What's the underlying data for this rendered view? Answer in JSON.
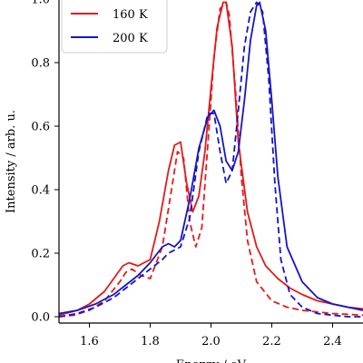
{
  "chart_data": {
    "type": "line",
    "title": "",
    "xlabel": "Energy / eV",
    "ylabel": "Intensity / arb. u.",
    "xlim": [
      1.5,
      2.5
    ],
    "ylim": [
      -0.02,
      1.02
    ],
    "xticks": [
      1.6,
      1.8,
      2.0,
      2.2,
      2.4
    ],
    "xtick_labels": [
      "1.6",
      "1.8",
      "2.0",
      "2.2",
      "2.4"
    ],
    "yticks": [
      0.0,
      0.2,
      0.4,
      0.6,
      0.8,
      1.0
    ],
    "ytick_labels": [
      "0.0",
      "0.2",
      "0.4",
      "0.6",
      "0.8",
      "1.0"
    ],
    "grid": false,
    "legend_position": "top-left",
    "legend": [
      {
        "label": "160 K",
        "color": "#e31a1c"
      },
      {
        "label": "200 K",
        "color": "#1515c8"
      }
    ],
    "series": [
      {
        "name": "160 K",
        "color": "#e31a1c",
        "style": "solid",
        "x": [
          1.5,
          1.56,
          1.6,
          1.65,
          1.68,
          1.71,
          1.73,
          1.76,
          1.8,
          1.83,
          1.86,
          1.88,
          1.9,
          1.92,
          1.94,
          1.96,
          1.98,
          2.0,
          2.02,
          2.04,
          2.05,
          2.07,
          2.09,
          2.12,
          2.15,
          2.18,
          2.22,
          2.26,
          2.3,
          2.35,
          2.4,
          2.45,
          2.5
        ],
        "y": [
          0.005,
          0.02,
          0.04,
          0.08,
          0.12,
          0.16,
          0.17,
          0.16,
          0.18,
          0.3,
          0.46,
          0.54,
          0.55,
          0.42,
          0.33,
          0.38,
          0.52,
          0.72,
          0.91,
          0.99,
          0.99,
          0.85,
          0.55,
          0.33,
          0.22,
          0.16,
          0.12,
          0.09,
          0.07,
          0.05,
          0.04,
          0.03,
          0.025
        ]
      },
      {
        "name": "160 K",
        "color": "#e31a1c",
        "style": "dashed",
        "x": [
          1.5,
          1.55,
          1.6,
          1.65,
          1.7,
          1.72,
          1.74,
          1.77,
          1.8,
          1.84,
          1.87,
          1.89,
          1.91,
          1.93,
          1.95,
          1.97,
          1.99,
          2.01,
          2.03,
          2.05,
          2.06,
          2.08,
          2.1,
          2.12,
          2.15,
          2.2,
          2.25,
          2.3,
          2.4,
          2.5
        ],
        "y": [
          0.0,
          0.005,
          0.02,
          0.05,
          0.11,
          0.14,
          0.15,
          0.13,
          0.12,
          0.22,
          0.4,
          0.52,
          0.5,
          0.3,
          0.22,
          0.28,
          0.55,
          0.82,
          0.97,
          0.99,
          0.95,
          0.72,
          0.44,
          0.24,
          0.11,
          0.05,
          0.03,
          0.02,
          0.01,
          0.005
        ]
      },
      {
        "name": "200 K",
        "color": "#1515c8",
        "style": "solid",
        "x": [
          1.5,
          1.56,
          1.62,
          1.68,
          1.72,
          1.76,
          1.8,
          1.84,
          1.86,
          1.88,
          1.9,
          1.93,
          1.96,
          1.99,
          2.01,
          2.03,
          2.05,
          2.07,
          2.09,
          2.11,
          2.13,
          2.15,
          2.16,
          2.18,
          2.2,
          2.22,
          2.25,
          2.3,
          2.35,
          2.4,
          2.45,
          2.5
        ],
        "y": [
          0.01,
          0.02,
          0.04,
          0.07,
          0.1,
          0.13,
          0.17,
          0.22,
          0.23,
          0.22,
          0.24,
          0.37,
          0.53,
          0.63,
          0.65,
          0.6,
          0.49,
          0.46,
          0.52,
          0.68,
          0.87,
          0.98,
          0.99,
          0.9,
          0.68,
          0.44,
          0.22,
          0.11,
          0.06,
          0.04,
          0.03,
          0.02
        ]
      },
      {
        "name": "200 K",
        "color": "#1515c8",
        "style": "dashed",
        "x": [
          1.5,
          1.56,
          1.62,
          1.68,
          1.72,
          1.76,
          1.8,
          1.84,
          1.86,
          1.88,
          1.9,
          1.93,
          1.96,
          1.99,
          2.01,
          2.03,
          2.05,
          2.07,
          2.09,
          2.11,
          2.13,
          2.15,
          2.17,
          2.19,
          2.21,
          2.23,
          2.26,
          2.3,
          2.35,
          2.4,
          2.45,
          2.5
        ],
        "y": [
          0.0,
          0.01,
          0.03,
          0.06,
          0.09,
          0.12,
          0.15,
          0.18,
          0.2,
          0.21,
          0.22,
          0.31,
          0.52,
          0.64,
          0.64,
          0.52,
          0.42,
          0.46,
          0.65,
          0.85,
          0.96,
          0.99,
          0.96,
          0.75,
          0.42,
          0.18,
          0.07,
          0.03,
          0.01,
          0.005,
          0.0,
          0.0
        ]
      }
    ]
  }
}
